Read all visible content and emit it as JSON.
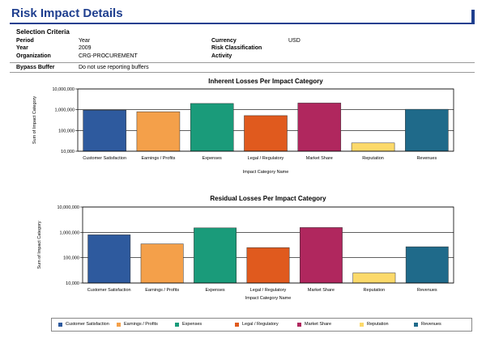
{
  "page": {
    "title": "Risk Impact Details"
  },
  "criteria": {
    "heading": "Selection Criteria",
    "rows": [
      {
        "label": "Period",
        "value": "Year",
        "label2": "Currency",
        "value2": "USD"
      },
      {
        "label": "Year",
        "value": "2009",
        "label2": "Risk Classification",
        "value2": ""
      },
      {
        "label": "Organization",
        "value": "CRG-PROCUREMENT",
        "label2": "Activity",
        "value2": ""
      }
    ],
    "bypass": {
      "label": "Bypass Buffer",
      "value": "Do not use reporting buffers"
    }
  },
  "colors": {
    "Customer Satisfaction": "#2e5a9e",
    "Earnings / Profits": "#f4a04a",
    "Expenses": "#1a9b7a",
    "Legal / Regulatory": "#e05a1e",
    "Market Share": "#b0275e",
    "Reputation": "#fcd96a",
    "Revenues": "#1f6a8a"
  },
  "chart_data": [
    {
      "type": "bar",
      "title": "Inherent Losses Per Impact Category",
      "xlabel": "Impact Category Name",
      "ylabel": "Sum of Impact Category",
      "yscale": "log",
      "ylim": [
        10000,
        10000000
      ],
      "yticks": [
        "10,000",
        "100,000",
        "1,000,000",
        "10,000,000"
      ],
      "categories": [
        "Customer Satisfaction",
        "Earnings / Profits",
        "Expenses",
        "Legal / Regulatory",
        "Market Share",
        "Reputation",
        "Revenues"
      ],
      "values": [
        950000,
        800000,
        2000000,
        520000,
        2100000,
        25000,
        1050000
      ],
      "grid": true
    },
    {
      "type": "bar",
      "title": "Residual Losses Per Impact Category",
      "xlabel": "Impact Category Name",
      "ylabel": "Sum of Impact Category",
      "yscale": "log",
      "ylim": [
        10000,
        10000000
      ],
      "yticks": [
        "10,000",
        "100,000",
        "1,000,000",
        "10,000,000"
      ],
      "categories": [
        "Customer Satisfaction",
        "Earnings / Profits",
        "Expenses",
        "Legal / Regulatory",
        "Market Share",
        "Reputation",
        "Revenues"
      ],
      "values": [
        800000,
        350000,
        1500000,
        250000,
        1550000,
        25000,
        270000
      ],
      "grid": true
    }
  ],
  "legend": {
    "entries": [
      "Customer Satisfaction",
      "Earnings / Profits",
      "Expenses",
      "Legal / Regulatory",
      "Market Share",
      "Reputation",
      "Revenues"
    ]
  }
}
